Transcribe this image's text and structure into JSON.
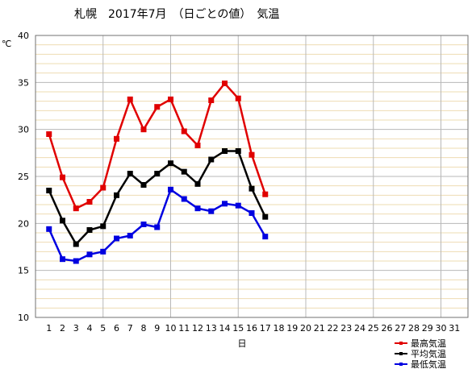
{
  "chart_data": {
    "type": "line",
    "title": "札幌　2017年7月　（日ごとの値）　気温",
    "ylabel": "℃",
    "xlabel": "日",
    "ylim": [
      10,
      40
    ],
    "yticks": [
      10,
      15,
      20,
      25,
      30,
      35,
      40
    ],
    "x_categories": [
      "1",
      "2",
      "3",
      "4",
      "5",
      "6",
      "7",
      "8",
      "9",
      "10",
      "11",
      "12",
      "13",
      "14",
      "15",
      "16",
      "17",
      "18",
      "19",
      "20",
      "21",
      "22",
      "23",
      "24",
      "25",
      "26",
      "27",
      "28",
      "29",
      "30",
      "31"
    ],
    "grid": true,
    "legend_position": "bottom-right",
    "series": [
      {
        "name": "最高気温",
        "color": "#e00000",
        "values": [
          29.5,
          24.9,
          21.6,
          22.3,
          23.8,
          29.0,
          33.2,
          30.0,
          32.4,
          33.2,
          29.8,
          28.3,
          33.1,
          34.9,
          33.3,
          27.3,
          23.1
        ]
      },
      {
        "name": "平均気温",
        "color": "#000000",
        "values": [
          23.5,
          20.3,
          17.8,
          19.3,
          19.7,
          23.0,
          25.3,
          24.1,
          25.3,
          26.4,
          25.5,
          24.2,
          26.8,
          27.7,
          27.7,
          23.7,
          20.7
        ]
      },
      {
        "name": "最低気温",
        "color": "#0000e0",
        "values": [
          19.4,
          16.2,
          16.0,
          16.7,
          17.0,
          18.4,
          18.7,
          19.9,
          19.6,
          23.6,
          22.6,
          21.6,
          21.3,
          22.1,
          21.9,
          21.1,
          18.6
        ]
      }
    ]
  }
}
